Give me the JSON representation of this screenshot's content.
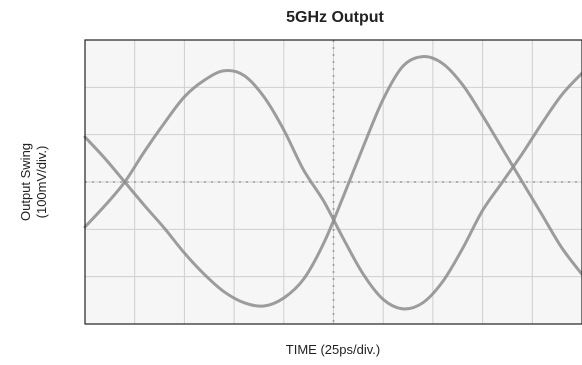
{
  "chart_data": {
    "type": "line",
    "title": "5GHz Output",
    "xlabel": "TIME (25ps/div.)",
    "ylabel_line1": "Output Swing",
    "ylabel_line2": "(100mV/div.)",
    "x_divisions": 10,
    "y_divisions": 6,
    "xlim": [
      0,
      250
    ],
    "ylim": [
      -300,
      300
    ],
    "x_unit": "ps",
    "y_unit": "mV",
    "grid": true,
    "center_axes_dotted": true,
    "series": [
      {
        "x": [
          0,
          10,
          20,
          30,
          40,
          50,
          60,
          70,
          80,
          90,
          100,
          110,
          120,
          130,
          140,
          150,
          160,
          170,
          180,
          190,
          200,
          210,
          220,
          230,
          240,
          250
        ],
        "values": [
          95,
          50,
          0,
          -50,
          -98,
          -150,
          -195,
          -232,
          -255,
          -262,
          -245,
          -205,
          -130,
          -30,
          75,
          175,
          245,
          265,
          250,
          205,
          140,
          70,
          0,
          -70,
          -140,
          -195
        ]
      },
      {
        "x": [
          0,
          10,
          20,
          30,
          40,
          50,
          60,
          70,
          80,
          90,
          100,
          110,
          120,
          130,
          140,
          150,
          160,
          170,
          180,
          190,
          200,
          210,
          220,
          230,
          240,
          250
        ],
        "values": [
          -95,
          -50,
          0,
          65,
          125,
          180,
          215,
          235,
          225,
          180,
          110,
          25,
          -40,
          -120,
          -195,
          -248,
          -268,
          -255,
          -210,
          -140,
          -60,
          0,
          60,
          125,
          185,
          230
        ]
      }
    ],
    "colors": {
      "trace": "#8c8c8c",
      "grid": "#cfcfcf",
      "frame": "#222222",
      "background": "#f6f6f6"
    }
  }
}
